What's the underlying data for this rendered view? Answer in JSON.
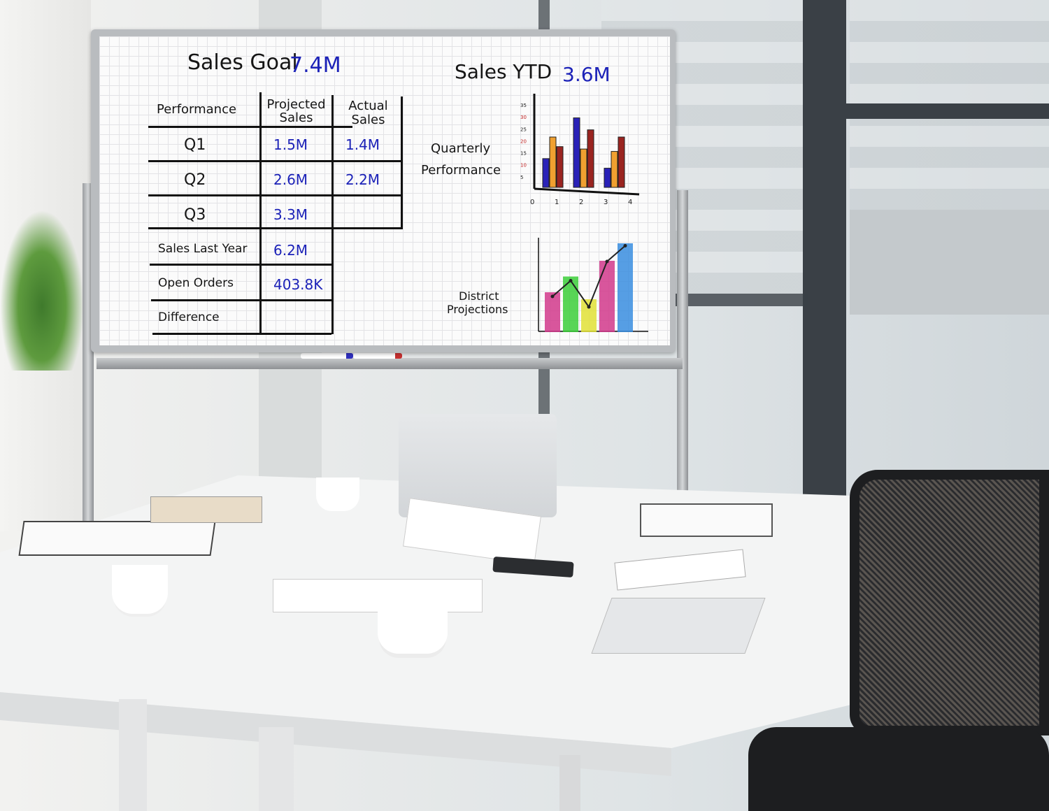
{
  "whiteboard": {
    "sales_goal_label": "Sales  Goal",
    "sales_goal_value": "7.4M",
    "sales_ytd_label": "Sales YTD",
    "sales_ytd_value": "3.6M",
    "table": {
      "headers": [
        "Performance",
        "Projected Sales",
        "Actual Sales"
      ],
      "rows": [
        {
          "label": "Q1",
          "projected": "1.5M",
          "actual": "1.4M"
        },
        {
          "label": "Q2",
          "projected": "2.6M",
          "actual": "2.2M"
        },
        {
          "label": "Q3",
          "projected": "3.3M",
          "actual": ""
        },
        {
          "label": "Sales Last Year",
          "projected": "6.2M",
          "actual": ""
        },
        {
          "label": "Open Orders",
          "projected": "403.8K",
          "actual": ""
        },
        {
          "label": "Difference",
          "projected": "",
          "actual": ""
        }
      ]
    },
    "quarterly_label_1": "Quarterly",
    "quarterly_label_2": "Performance",
    "district_label_1": "District",
    "district_label_2": "Projections"
  },
  "chart_data": [
    {
      "type": "bar",
      "categories": [
        "1",
        "2",
        "3"
      ],
      "x_ticks": [
        "0",
        "1",
        "2",
        "3",
        "4"
      ],
      "y_ticks": [
        "5",
        "10",
        "15",
        "20",
        "25",
        "30",
        "35"
      ],
      "ylim": [
        0,
        35
      ],
      "series": [
        {
          "values": [
            12,
            29,
            8
          ],
          "color": "#2a22b8"
        },
        {
          "values": [
            21,
            16,
            15
          ],
          "color": "#f0a030"
        },
        {
          "values": [
            17,
            24,
            21
          ],
          "color": "#9a2420"
        }
      ]
    },
    {
      "type": "bar",
      "values": [
        2.2,
        3.1,
        1.8,
        4.0,
        5.0
      ],
      "line_values": [
        2.0,
        2.9,
        1.4,
        4.0,
        4.9
      ],
      "colors": [
        "#d23a8c",
        "#3ccf3a",
        "#e2e238",
        "#d23a8c",
        "#3a8ee0"
      ]
    }
  ],
  "colors": {
    "marker_blue": "#1c22b8",
    "frame": "#b9bcbf",
    "chair": "#1d1e20"
  }
}
